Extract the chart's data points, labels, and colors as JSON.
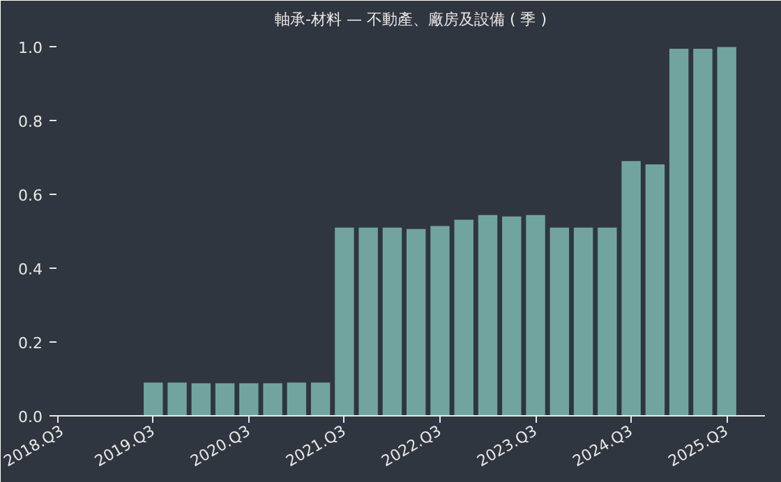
{
  "chart_data": {
    "type": "bar",
    "title": "軸承-材料 — 不動產、廠房及設備 ( 季 )",
    "categories": [
      "2018.Q3",
      null,
      null,
      null,
      "2019.Q3",
      null,
      null,
      null,
      "2020.Q3",
      null,
      null,
      null,
      "2021.Q3",
      null,
      null,
      null,
      "2022.Q3",
      null,
      null,
      null,
      "2023.Q3",
      null,
      null,
      null,
      "2024.Q3",
      null,
      null,
      null,
      "2025.Q3"
    ],
    "values": [
      null,
      null,
      null,
      null,
      0.09,
      0.09,
      0.088,
      0.088,
      0.088,
      0.088,
      0.09,
      0.09,
      0.51,
      0.51,
      0.51,
      0.506,
      0.514,
      0.531,
      0.544,
      0.54,
      0.544,
      0.51,
      0.51,
      0.51,
      0.69,
      0.681,
      0.994,
      0.994,
      0.999
    ],
    "color": "#72a49f",
    "ylim": [
      0,
      1.03
    ],
    "yticks": [
      {
        "value": 0,
        "label": "0.0"
      },
      {
        "value": 0.2,
        "label": "0.2"
      },
      {
        "value": 0.4,
        "label": "0.4"
      },
      {
        "value": 0.6,
        "label": "0.6"
      },
      {
        "value": 0.8,
        "label": "0.8"
      },
      {
        "value": 1,
        "label": "1.0"
      }
    ],
    "grid": false
  }
}
